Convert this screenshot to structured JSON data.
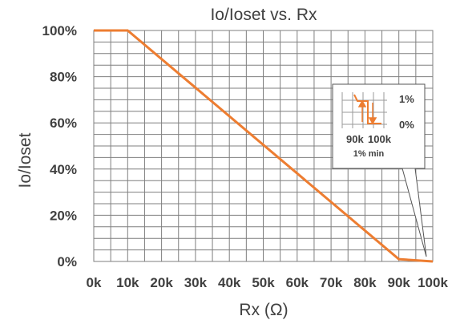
{
  "chart_data": {
    "type": "line",
    "title": "Io/Ioset vs. Rx",
    "xlabel": "Rx (Ω)",
    "ylabel": "Io/Ioset",
    "xlim": [
      0,
      100
    ],
    "ylim": [
      0,
      100
    ],
    "x_ticks": [
      "0k",
      "10k",
      "20k",
      "30k",
      "40k",
      "50k",
      "60k",
      "70k",
      "80k",
      "90k",
      "100k"
    ],
    "y_ticks": [
      "0%",
      "20%",
      "40%",
      "60%",
      "80%",
      "100%"
    ],
    "grid": true,
    "series": [
      {
        "x": [
          0,
          10,
          90,
          100
        ],
        "y": [
          100,
          100,
          1,
          0
        ]
      }
    ],
    "inset": {
      "labels": [
        "1%",
        "0%",
        "90k",
        "100k",
        "1% min"
      ]
    }
  },
  "colors": {
    "series": "#ed7d31",
    "grid": "#7f7f7f",
    "text": "#404040"
  }
}
